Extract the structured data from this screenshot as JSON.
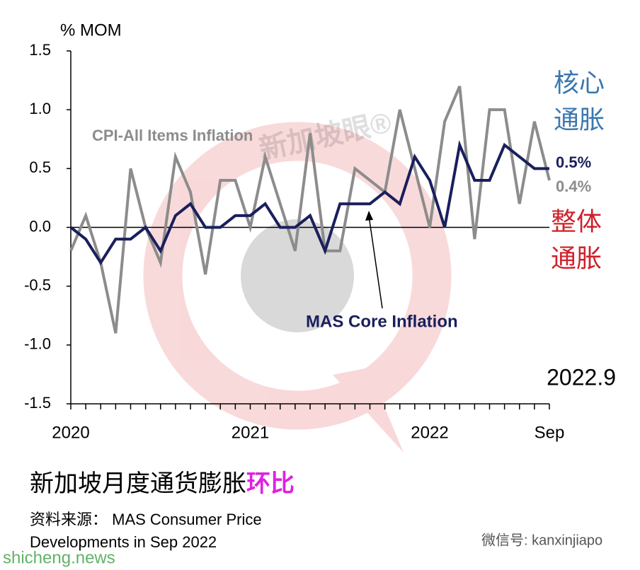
{
  "chart_data": {
    "type": "line",
    "y_label": "% MOM",
    "categories": [
      "2020",
      null,
      null,
      null,
      null,
      null,
      null,
      null,
      null,
      null,
      null,
      null,
      "2021",
      null,
      null,
      null,
      null,
      null,
      null,
      null,
      null,
      null,
      null,
      null,
      "2022",
      null,
      null,
      null,
      null,
      null,
      null,
      null,
      "Sep"
    ],
    "series": [
      {
        "name": "CPI-All Items Inflation",
        "color": "#8c8c8c",
        "end_label": "0.4%",
        "values": [
          -0.2,
          0.1,
          -0.3,
          -0.9,
          0.5,
          0.0,
          -0.3,
          0.6,
          0.3,
          -0.4,
          0.4,
          0.4,
          0.0,
          0.6,
          0.2,
          -0.2,
          0.8,
          -0.2,
          -0.2,
          0.5,
          0.4,
          0.3,
          1.0,
          0.5,
          0.0,
          0.9,
          1.2,
          -0.1,
          1.0,
          1.0,
          0.2,
          0.9,
          0.4
        ]
      },
      {
        "name": "MAS Core Inflation",
        "color": "#1a1f5c",
        "end_label": "0.5%",
        "values": [
          0.0,
          -0.1,
          -0.3,
          -0.1,
          -0.1,
          0.0,
          -0.2,
          0.1,
          0.2,
          0.0,
          0.0,
          0.1,
          0.1,
          0.2,
          0.0,
          0.0,
          0.1,
          -0.2,
          0.2,
          0.2,
          0.2,
          0.3,
          0.2,
          0.6,
          0.4,
          0.0,
          0.7,
          0.4,
          0.4,
          0.7,
          0.6,
          0.5,
          0.5
        ]
      }
    ],
    "ylim": [
      -1.5,
      1.5
    ],
    "yticks": [
      {
        "value": -1.5,
        "label": "-1.5"
      },
      {
        "value": -1.0,
        "label": "-1.0"
      },
      {
        "value": -0.5,
        "label": "-0.5"
      },
      {
        "value": 0,
        "label": "0.0"
      },
      {
        "value": 0.5,
        "label": "0.5"
      },
      {
        "value": 1.0,
        "label": "1.0"
      },
      {
        "value": 1.5,
        "label": "1.5"
      }
    ],
    "core_tag": [
      "核心",
      "通胀"
    ],
    "headline_tag": [
      "整体",
      "通胀"
    ],
    "date_tag": "2022.9",
    "title": "新加坡月度通货膨胀",
    "title_highlight": "环比",
    "source": [
      "资料来源： MAS Consumer Price",
      "Developments in Sep 2022"
    ],
    "watermark": "新加坡眼®",
    "wechat": "微信号: kanxinjiapo",
    "site": "shicheng.news"
  }
}
